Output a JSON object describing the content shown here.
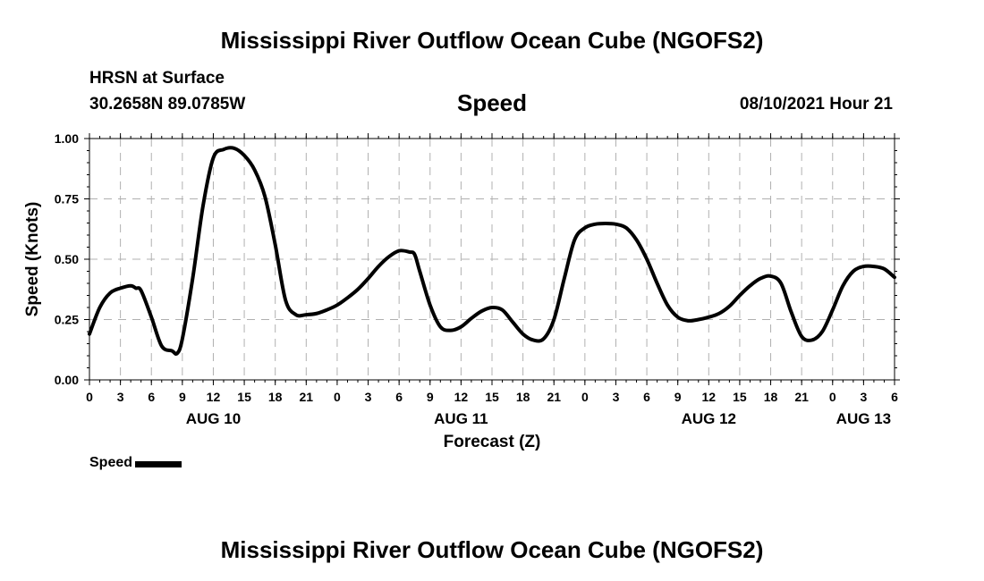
{
  "header": {
    "title": "Mississippi River Outflow Ocean Cube (NGOFS2)",
    "station": "HRSN at Surface",
    "coordinates": "30.2658N  89.0785W",
    "datetime": "08/10/2021 Hour 21"
  },
  "footer": {
    "title": "Mississippi River Outflow Ocean Cube (NGOFS2)"
  },
  "legend": {
    "label": "Speed"
  },
  "colors": {
    "line": "#000000",
    "grid": "#b0b0b0"
  },
  "chart_data": {
    "type": "line",
    "title": "Speed",
    "xlabel": "Forecast (Z)",
    "ylabel": "Speed (Knots)",
    "xlim": [
      0,
      78
    ],
    "ylim": [
      0,
      1.0
    ],
    "x_unit": "hours since Aug 10 00Z",
    "yticks": [
      "0.00",
      "0.25",
      "0.50",
      "0.75",
      "1.00"
    ],
    "yticks_values": [
      0,
      0.25,
      0.5,
      0.75,
      1.0
    ],
    "xtick_hours": [
      0,
      3,
      6,
      9,
      12,
      15,
      18,
      21,
      24,
      27,
      30,
      33,
      36,
      39,
      42,
      45,
      48,
      51,
      54,
      57,
      60,
      63,
      66,
      69,
      72,
      75,
      78
    ],
    "xtick_labels": [
      "0",
      "3",
      "6",
      "9",
      "12",
      "15",
      "18",
      "21",
      "0",
      "3",
      "6",
      "9",
      "12",
      "15",
      "18",
      "21",
      "0",
      "3",
      "6",
      "9",
      "12",
      "15",
      "18",
      "21",
      "0",
      "3",
      "6"
    ],
    "date_labels": [
      {
        "label": "AUG 10",
        "hour": 12
      },
      {
        "label": "AUG 11",
        "hour": 36
      },
      {
        "label": "AUG 12",
        "hour": 60
      },
      {
        "label": "AUG 13",
        "hour": 75
      }
    ],
    "series": [
      {
        "name": "Speed",
        "x": [
          0,
          1,
          2,
          3,
          4,
          4.5,
          5,
          6,
          7,
          8,
          8.5,
          9,
          10,
          11,
          12,
          13,
          14,
          15,
          16,
          17,
          18,
          19,
          20,
          21,
          22,
          23,
          24,
          25,
          26,
          27,
          28,
          29,
          30,
          31,
          31.5,
          32,
          33,
          34,
          35,
          36,
          37,
          38,
          39,
          40,
          41,
          42,
          43,
          44,
          45,
          46,
          47,
          48,
          49,
          50,
          51,
          52,
          53,
          54,
          55,
          56,
          57,
          58,
          59,
          60,
          61,
          62,
          63,
          64,
          65,
          66,
          67,
          68,
          69,
          70,
          71,
          72,
          73,
          74,
          75,
          76,
          77,
          78
        ],
        "y": [
          0.19,
          0.3,
          0.36,
          0.38,
          0.39,
          0.38,
          0.37,
          0.26,
          0.14,
          0.12,
          0.11,
          0.17,
          0.42,
          0.72,
          0.92,
          0.955,
          0.96,
          0.93,
          0.87,
          0.76,
          0.56,
          0.33,
          0.27,
          0.27,
          0.275,
          0.29,
          0.31,
          0.34,
          0.375,
          0.42,
          0.47,
          0.51,
          0.535,
          0.53,
          0.52,
          0.45,
          0.31,
          0.22,
          0.205,
          0.22,
          0.255,
          0.285,
          0.3,
          0.29,
          0.24,
          0.19,
          0.165,
          0.17,
          0.25,
          0.42,
          0.58,
          0.63,
          0.645,
          0.648,
          0.645,
          0.63,
          0.58,
          0.5,
          0.4,
          0.31,
          0.26,
          0.245,
          0.25,
          0.26,
          0.275,
          0.305,
          0.35,
          0.39,
          0.42,
          0.43,
          0.4,
          0.28,
          0.18,
          0.165,
          0.2,
          0.29,
          0.39,
          0.45,
          0.47,
          0.47,
          0.46,
          0.425
        ]
      }
    ]
  }
}
